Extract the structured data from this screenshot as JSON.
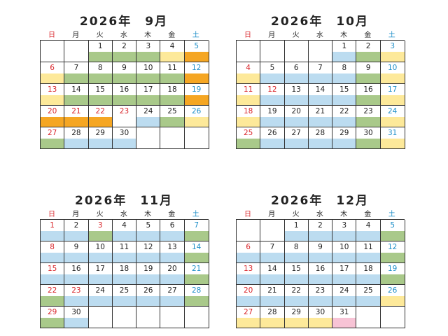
{
  "colors": {
    "g": "#a9c98a",
    "y": "#fde99a",
    "o": "#f5a623",
    "b": "#bcdcf0",
    "p": "#f7c3d5",
    "w": "#ffffff"
  },
  "weekdays": [
    "日",
    "月",
    "火",
    "水",
    "木",
    "金",
    "土"
  ],
  "months": [
    {
      "title": "2026年　9月",
      "weeks": [
        [
          null,
          null,
          {
            "day": "1",
            "strip": "g"
          },
          {
            "day": "2",
            "strip": "g"
          },
          {
            "day": "3",
            "strip": "g"
          },
          {
            "day": "4",
            "strip": "y"
          },
          {
            "day": "5",
            "strip": "o"
          }
        ],
        [
          {
            "day": "6",
            "strip": "y"
          },
          {
            "day": "7",
            "strip": "g"
          },
          {
            "day": "8",
            "strip": "g"
          },
          {
            "day": "9",
            "strip": "g"
          },
          {
            "day": "10",
            "strip": "g"
          },
          {
            "day": "11",
            "strip": "g"
          },
          {
            "day": "12",
            "strip": "o"
          }
        ],
        [
          {
            "day": "13",
            "strip": "y"
          },
          {
            "day": "14",
            "strip": "g"
          },
          {
            "day": "15",
            "strip": "g"
          },
          {
            "day": "16",
            "strip": "g"
          },
          {
            "day": "17",
            "strip": "g"
          },
          {
            "day": "18",
            "strip": "g"
          },
          {
            "day": "19",
            "strip": "o"
          }
        ],
        [
          {
            "day": "20",
            "strip": "o"
          },
          {
            "day": "21",
            "strip": "o",
            "holiday": true
          },
          {
            "day": "22",
            "strip": "o",
            "holiday": true
          },
          {
            "day": "23",
            "strip": "w",
            "holiday": true
          },
          {
            "day": "24",
            "strip": "b"
          },
          {
            "day": "25",
            "strip": "g"
          },
          {
            "day": "26",
            "strip": "y"
          }
        ],
        [
          {
            "day": "27",
            "strip": "g"
          },
          {
            "day": "28",
            "strip": "b"
          },
          {
            "day": "29",
            "strip": "b"
          },
          {
            "day": "30",
            "strip": "b"
          },
          null,
          null,
          null
        ]
      ]
    },
    {
      "title": "2026年　10月",
      "weeks": [
        [
          null,
          null,
          null,
          null,
          {
            "day": "1",
            "strip": "b"
          },
          {
            "day": "2",
            "strip": "g"
          },
          {
            "day": "3",
            "strip": "y"
          }
        ],
        [
          {
            "day": "4",
            "strip": "y"
          },
          {
            "day": "5",
            "strip": "b"
          },
          {
            "day": "6",
            "strip": "b"
          },
          {
            "day": "7",
            "strip": "b"
          },
          {
            "day": "8",
            "strip": "b"
          },
          {
            "day": "9",
            "strip": "g"
          },
          {
            "day": "10",
            "strip": "y"
          }
        ],
        [
          {
            "day": "11",
            "strip": "y"
          },
          {
            "day": "12",
            "strip": "b",
            "holiday": true
          },
          {
            "day": "13",
            "strip": "b"
          },
          {
            "day": "14",
            "strip": "b"
          },
          {
            "day": "15",
            "strip": "b"
          },
          {
            "day": "16",
            "strip": "g"
          },
          {
            "day": "17",
            "strip": "y"
          }
        ],
        [
          {
            "day": "18",
            "strip": "y"
          },
          {
            "day": "19",
            "strip": "b"
          },
          {
            "day": "20",
            "strip": "b"
          },
          {
            "day": "21",
            "strip": "b"
          },
          {
            "day": "22",
            "strip": "b"
          },
          {
            "day": "23",
            "strip": "g"
          },
          {
            "day": "24",
            "strip": "y"
          }
        ],
        [
          {
            "day": "25",
            "strip": "g"
          },
          {
            "day": "26",
            "strip": "b"
          },
          {
            "day": "27",
            "strip": "b"
          },
          {
            "day": "28",
            "strip": "b"
          },
          {
            "day": "29",
            "strip": "b"
          },
          {
            "day": "30",
            "strip": "g"
          },
          {
            "day": "31",
            "strip": "y"
          }
        ]
      ]
    },
    {
      "title": "2026年　11月",
      "weeks": [
        [
          {
            "day": "1",
            "strip": "b"
          },
          {
            "day": "2",
            "strip": "b"
          },
          {
            "day": "3",
            "strip": "g",
            "holiday": true
          },
          {
            "day": "4",
            "strip": "b"
          },
          {
            "day": "5",
            "strip": "b"
          },
          {
            "day": "6",
            "strip": "b"
          },
          {
            "day": "7",
            "strip": "g"
          }
        ],
        [
          {
            "day": "8",
            "strip": "b"
          },
          {
            "day": "9",
            "strip": "b"
          },
          {
            "day": "10",
            "strip": "b"
          },
          {
            "day": "11",
            "strip": "b"
          },
          {
            "day": "12",
            "strip": "b"
          },
          {
            "day": "13",
            "strip": "b"
          },
          {
            "day": "14",
            "strip": "g"
          }
        ],
        [
          {
            "day": "15",
            "strip": "b"
          },
          {
            "day": "16",
            "strip": "b"
          },
          {
            "day": "17",
            "strip": "b"
          },
          {
            "day": "18",
            "strip": "b"
          },
          {
            "day": "19",
            "strip": "b"
          },
          {
            "day": "20",
            "strip": "b"
          },
          {
            "day": "21",
            "strip": "g"
          }
        ],
        [
          {
            "day": "22",
            "strip": "g"
          },
          {
            "day": "23",
            "strip": "b",
            "holiday": true
          },
          {
            "day": "24",
            "strip": "b"
          },
          {
            "day": "25",
            "strip": "b"
          },
          {
            "day": "26",
            "strip": "b"
          },
          {
            "day": "27",
            "strip": "b"
          },
          {
            "day": "28",
            "strip": "g"
          }
        ],
        [
          {
            "day": "29",
            "strip": "g"
          },
          {
            "day": "30",
            "strip": "b"
          },
          null,
          null,
          null,
          null,
          null
        ]
      ]
    },
    {
      "title": "2026年　12月",
      "weeks": [
        [
          null,
          null,
          {
            "day": "1",
            "strip": "b"
          },
          {
            "day": "2",
            "strip": "b"
          },
          {
            "day": "3",
            "strip": "b"
          },
          {
            "day": "4",
            "strip": "b"
          },
          {
            "day": "5",
            "strip": "g"
          }
        ],
        [
          {
            "day": "6",
            "strip": "b"
          },
          {
            "day": "7",
            "strip": "b"
          },
          {
            "day": "8",
            "strip": "b"
          },
          {
            "day": "9",
            "strip": "b"
          },
          {
            "day": "10",
            "strip": "b"
          },
          {
            "day": "11",
            "strip": "b"
          },
          {
            "day": "12",
            "strip": "g"
          }
        ],
        [
          {
            "day": "13",
            "strip": "b"
          },
          {
            "day": "14",
            "strip": "b"
          },
          {
            "day": "15",
            "strip": "b"
          },
          {
            "day": "16",
            "strip": "b"
          },
          {
            "day": "17",
            "strip": "b"
          },
          {
            "day": "18",
            "strip": "b"
          },
          {
            "day": "19",
            "strip": "g"
          }
        ],
        [
          {
            "day": "20",
            "strip": "b"
          },
          {
            "day": "21",
            "strip": "b"
          },
          {
            "day": "22",
            "strip": "b"
          },
          {
            "day": "23",
            "strip": "b"
          },
          {
            "day": "24",
            "strip": "b"
          },
          {
            "day": "25",
            "strip": "b"
          },
          {
            "day": "26",
            "strip": "y"
          }
        ],
        [
          {
            "day": "27",
            "strip": "y"
          },
          {
            "day": "28",
            "strip": "y"
          },
          {
            "day": "29",
            "strip": "y"
          },
          {
            "day": "30",
            "strip": "y"
          },
          {
            "day": "31",
            "strip": "p"
          },
          null,
          null
        ]
      ]
    }
  ]
}
